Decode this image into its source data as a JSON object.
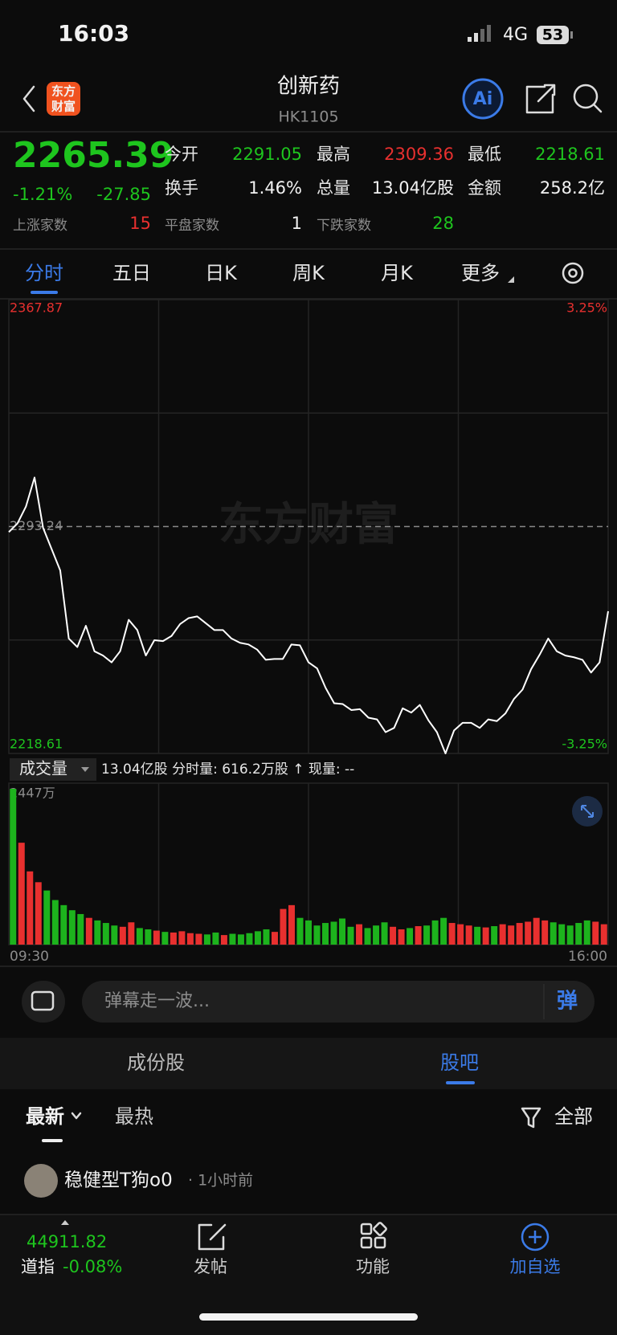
{
  "status_bar": {
    "time": "16:03",
    "network": "4G",
    "battery": "53"
  },
  "nav": {
    "logo": [
      "东方",
      "财富"
    ],
    "title": "创新药",
    "code": "HK1105",
    "ai": "Ai"
  },
  "quote": {
    "price": "2265.39",
    "change_pct": "-1.21%",
    "change": "-27.85",
    "stats": [
      {
        "label": "今开",
        "value": "2291.05"
      },
      {
        "label": "最高",
        "value": "2309.36"
      },
      {
        "label": "最低",
        "value": "2218.61"
      },
      {
        "label": "换手",
        "value": "1.46%"
      },
      {
        "label": "总量",
        "value": "13.04亿股"
      },
      {
        "label": "金额",
        "value": "258.2亿"
      },
      {
        "label": "上涨家数",
        "value": "15"
      },
      {
        "label": "平盘家数",
        "value": "1"
      },
      {
        "label": "下跌家数",
        "value": "28"
      }
    ]
  },
  "tabs": [
    "分时",
    "五日",
    "日K",
    "周K",
    "月K",
    "更多"
  ],
  "watermark": "东方财富",
  "chart_data": [
    {
      "type": "line",
      "series": [
        {
          "color": "#ffffff",
          "values": [
            2291.42,
            2294.22,
            2299.82,
            2309.36,
            2292.82,
            2285.82,
            2278.82,
            2256.41,
            2253.61,
            2260.61,
            2252.21,
            2250.81,
            2248.57,
            2252.21,
            2262.57,
            2259.21,
            2250.81,
            2255.85,
            2255.57,
            2257.25,
            2261.17,
            2263.13,
            2263.69,
            2261.45,
            2259.21,
            2259.21,
            2256.41,
            2255.01,
            2254.45,
            2252.77,
            2249.41,
            2249.69,
            2249.69,
            2254.45,
            2254.17,
            2248.57,
            2246.61,
            2240.17,
            2235.13,
            2234.85,
            2232.89,
            2233.17,
            2230.37,
            2229.81,
            2225.61,
            2227.01,
            2233.45,
            2232.05,
            2234.57,
            2229.53,
            2225.61,
            2218.61,
            2226.17,
            2228.69,
            2228.69,
            2227.01,
            2229.81,
            2229.25,
            2231.77,
            2236.53,
            2239.61,
            2246.33,
            2251.09,
            2256.41,
            2252.21,
            2250.81,
            2250.25,
            2249.41,
            2245.21,
            2248.57,
            2265.39
          ]
        }
      ],
      "ylim": [
        2218.61,
        2367.87
      ],
      "yticks": [
        2218.61,
        2293.24,
        2367.87
      ],
      "y2lim": [
        -3.25,
        3.25
      ],
      "y2ticks": [
        {
          "value": -3.25,
          "label": "-3.25%"
        },
        {
          "value": 3.25,
          "label": "3.25%"
        }
      ],
      "grid": true
    },
    {
      "type": "bar",
      "values": [
        2447,
        1600,
        1150,
        980,
        850,
        700,
        620,
        540,
        480,
        420,
        380,
        340,
        300,
        280,
        350,
        260,
        240,
        220,
        200,
        190,
        210,
        180,
        170,
        160,
        190,
        150,
        170,
        160,
        180,
        210,
        240,
        200,
        560,
        620,
        420,
        380,
        300,
        340,
        360,
        410,
        280,
        320,
        260,
        300,
        350,
        280,
        240,
        260,
        290,
        300,
        380,
        420,
        340,
        320,
        300,
        280,
        270,
        290,
        320,
        300,
        340,
        360,
        420,
        380,
        350,
        320,
        300,
        340,
        380,
        360,
        320
      ],
      "ylim": [
        0,
        2447
      ],
      "yticks": [
        {
          "value": 2447,
          "label": "2447万"
        }
      ],
      "colors": {
        "up": "#e8302f",
        "down": "#1db31d"
      },
      "xlabels": [
        "09:30",
        "16:00"
      ],
      "grid": true
    }
  ],
  "volume_info": {
    "selector": "成交量",
    "summary": "13.04亿股 分时量: 616.2万股 ↑ 现量: --"
  },
  "comment": {
    "placeholder": "弹幕走一波...",
    "button": "弹"
  },
  "section_tabs": [
    "成份股",
    "股吧"
  ],
  "filters": {
    "sort": [
      "最新",
      "最热"
    ],
    "all": "全部"
  },
  "posts": [
    {
      "author": "稳健型T狗o0",
      "time": "· 1小时前"
    }
  ],
  "bottom_bar": {
    "index_value": "44911.82",
    "index_name": "道指",
    "index_change": "-0.08%",
    "items": [
      "发帖",
      "功能",
      "加自选"
    ]
  }
}
